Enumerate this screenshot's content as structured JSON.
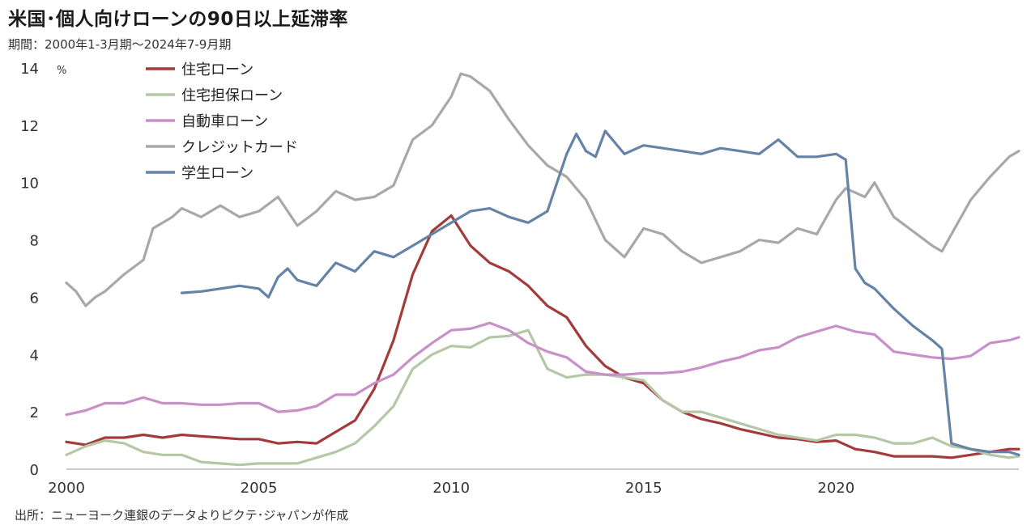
{
  "title": "米国･個人向けローンの90日以上延滞率",
  "subtitle": "期間：2000年1-3月期～2024年7-9月期",
  "source": "出所：ニューヨーク連銀のデータよりピクテ･ジャパンが作成",
  "chart_data": {
    "type": "line",
    "ylabel": "%",
    "ylim": [
      0,
      14
    ],
    "xlim": [
      2000.0,
      2024.75
    ],
    "yticks": [
      0,
      2,
      4,
      6,
      8,
      10,
      12,
      14
    ],
    "xticks": [
      2000,
      2005,
      2010,
      2015,
      2020
    ],
    "grid": false,
    "legend_position": "top-left",
    "series": [
      {
        "name": "住宅ローン",
        "color": "#a33b3b",
        "points": [
          [
            2000,
            0.95
          ],
          [
            2000.5,
            0.85
          ],
          [
            2001,
            1.1
          ],
          [
            2001.5,
            1.1
          ],
          [
            2002,
            1.2
          ],
          [
            2002.5,
            1.1
          ],
          [
            2003,
            1.2
          ],
          [
            2003.5,
            1.15
          ],
          [
            2004,
            1.1
          ],
          [
            2004.5,
            1.05
          ],
          [
            2005,
            1.05
          ],
          [
            2005.5,
            0.9
          ],
          [
            2006,
            0.95
          ],
          [
            2006.5,
            0.9
          ],
          [
            2007,
            1.3
          ],
          [
            2007.5,
            1.7
          ],
          [
            2008,
            2.8
          ],
          [
            2008.5,
            4.5
          ],
          [
            2009,
            6.8
          ],
          [
            2009.5,
            8.3
          ],
          [
            2010,
            8.85
          ],
          [
            2010.5,
            7.8
          ],
          [
            2011,
            7.2
          ],
          [
            2011.5,
            6.9
          ],
          [
            2012,
            6.4
          ],
          [
            2012.5,
            5.7
          ],
          [
            2013,
            5.3
          ],
          [
            2013.5,
            4.3
          ],
          [
            2014,
            3.6
          ],
          [
            2014.5,
            3.2
          ],
          [
            2015,
            3.0
          ],
          [
            2015.5,
            2.4
          ],
          [
            2016,
            2.0
          ],
          [
            2016.5,
            1.75
          ],
          [
            2017,
            1.6
          ],
          [
            2017.5,
            1.4
          ],
          [
            2018,
            1.25
          ],
          [
            2018.5,
            1.1
          ],
          [
            2019,
            1.05
          ],
          [
            2019.5,
            0.95
          ],
          [
            2020,
            1.0
          ],
          [
            2020.5,
            0.7
          ],
          [
            2021,
            0.6
          ],
          [
            2021.5,
            0.45
          ],
          [
            2022,
            0.45
          ],
          [
            2022.5,
            0.45
          ],
          [
            2023,
            0.4
          ],
          [
            2023.5,
            0.5
          ],
          [
            2024,
            0.6
          ],
          [
            2024.5,
            0.7
          ],
          [
            2024.75,
            0.7
          ]
        ]
      },
      {
        "name": "住宅担保ローン",
        "color": "#b4c8a8",
        "points": [
          [
            2000,
            0.5
          ],
          [
            2000.5,
            0.8
          ],
          [
            2001,
            1.0
          ],
          [
            2001.5,
            0.9
          ],
          [
            2002,
            0.6
          ],
          [
            2002.5,
            0.5
          ],
          [
            2003,
            0.5
          ],
          [
            2003.5,
            0.25
          ],
          [
            2004,
            0.2
          ],
          [
            2004.5,
            0.15
          ],
          [
            2005,
            0.2
          ],
          [
            2005.5,
            0.2
          ],
          [
            2006,
            0.2
          ],
          [
            2006.5,
            0.4
          ],
          [
            2007,
            0.6
          ],
          [
            2007.5,
            0.9
          ],
          [
            2008,
            1.5
          ],
          [
            2008.5,
            2.2
          ],
          [
            2009,
            3.5
          ],
          [
            2009.5,
            4.0
          ],
          [
            2010,
            4.3
          ],
          [
            2010.5,
            4.25
          ],
          [
            2011,
            4.6
          ],
          [
            2011.5,
            4.65
          ],
          [
            2012,
            4.85
          ],
          [
            2012.5,
            3.5
          ],
          [
            2013,
            3.2
          ],
          [
            2013.5,
            3.3
          ],
          [
            2014,
            3.3
          ],
          [
            2014.5,
            3.2
          ],
          [
            2015,
            3.1
          ],
          [
            2015.5,
            2.4
          ],
          [
            2016,
            2.0
          ],
          [
            2016.5,
            2.0
          ],
          [
            2017,
            1.8
          ],
          [
            2017.5,
            1.6
          ],
          [
            2018,
            1.4
          ],
          [
            2018.5,
            1.2
          ],
          [
            2019,
            1.1
          ],
          [
            2019.5,
            1.0
          ],
          [
            2020,
            1.2
          ],
          [
            2020.5,
            1.2
          ],
          [
            2021,
            1.1
          ],
          [
            2021.5,
            0.9
          ],
          [
            2022,
            0.9
          ],
          [
            2022.5,
            1.1
          ],
          [
            2023,
            0.8
          ],
          [
            2023.5,
            0.7
          ],
          [
            2024,
            0.5
          ],
          [
            2024.5,
            0.4
          ],
          [
            2024.75,
            0.45
          ]
        ]
      },
      {
        "name": "自動車ローン",
        "color": "#c88fc8",
        "points": [
          [
            2000,
            1.9
          ],
          [
            2000.5,
            2.05
          ],
          [
            2001,
            2.3
          ],
          [
            2001.5,
            2.3
          ],
          [
            2002,
            2.5
          ],
          [
            2002.5,
            2.3
          ],
          [
            2003,
            2.3
          ],
          [
            2003.5,
            2.25
          ],
          [
            2004,
            2.25
          ],
          [
            2004.5,
            2.3
          ],
          [
            2005,
            2.3
          ],
          [
            2005.5,
            2.0
          ],
          [
            2006,
            2.05
          ],
          [
            2006.5,
            2.2
          ],
          [
            2007,
            2.6
          ],
          [
            2007.5,
            2.6
          ],
          [
            2008,
            3.0
          ],
          [
            2008.5,
            3.3
          ],
          [
            2009,
            3.9
          ],
          [
            2009.5,
            4.4
          ],
          [
            2010,
            4.85
          ],
          [
            2010.5,
            4.9
          ],
          [
            2011,
            5.1
          ],
          [
            2011.5,
            4.85
          ],
          [
            2012,
            4.4
          ],
          [
            2012.5,
            4.1
          ],
          [
            2013,
            3.9
          ],
          [
            2013.5,
            3.4
          ],
          [
            2014,
            3.3
          ],
          [
            2014.5,
            3.3
          ],
          [
            2015,
            3.35
          ],
          [
            2015.5,
            3.35
          ],
          [
            2016,
            3.4
          ],
          [
            2016.5,
            3.55
          ],
          [
            2017,
            3.75
          ],
          [
            2017.5,
            3.9
          ],
          [
            2018,
            4.15
          ],
          [
            2018.5,
            4.25
          ],
          [
            2019,
            4.6
          ],
          [
            2019.5,
            4.8
          ],
          [
            2020,
            5.0
          ],
          [
            2020.5,
            4.8
          ],
          [
            2021,
            4.7
          ],
          [
            2021.5,
            4.1
          ],
          [
            2022,
            4.0
          ],
          [
            2022.5,
            3.9
          ],
          [
            2023,
            3.85
          ],
          [
            2023.5,
            3.95
          ],
          [
            2024,
            4.4
          ],
          [
            2024.5,
            4.5
          ],
          [
            2024.75,
            4.6
          ]
        ]
      },
      {
        "name": "クレジットカード",
        "color": "#a8a8a8",
        "points": [
          [
            2000,
            6.5
          ],
          [
            2000.25,
            6.2
          ],
          [
            2000.5,
            5.7
          ],
          [
            2000.75,
            6.0
          ],
          [
            2001,
            6.2
          ],
          [
            2001.5,
            6.8
          ],
          [
            2002,
            7.3
          ],
          [
            2002.25,
            8.4
          ],
          [
            2002.75,
            8.8
          ],
          [
            2003,
            9.1
          ],
          [
            2003.5,
            8.8
          ],
          [
            2004,
            9.2
          ],
          [
            2004.5,
            8.8
          ],
          [
            2005,
            9.0
          ],
          [
            2005.5,
            9.5
          ],
          [
            2006,
            8.5
          ],
          [
            2006.5,
            9.0
          ],
          [
            2007,
            9.7
          ],
          [
            2007.5,
            9.4
          ],
          [
            2008,
            9.5
          ],
          [
            2008.5,
            9.9
          ],
          [
            2009,
            11.5
          ],
          [
            2009.5,
            12.0
          ],
          [
            2010,
            13.0
          ],
          [
            2010.25,
            13.8
          ],
          [
            2010.5,
            13.7
          ],
          [
            2011,
            13.2
          ],
          [
            2011.5,
            12.2
          ],
          [
            2012,
            11.3
          ],
          [
            2012.5,
            10.6
          ],
          [
            2013,
            10.2
          ],
          [
            2013.5,
            9.4
          ],
          [
            2014,
            8.0
          ],
          [
            2014.5,
            7.4
          ],
          [
            2015,
            8.4
          ],
          [
            2015.5,
            8.2
          ],
          [
            2016,
            7.6
          ],
          [
            2016.5,
            7.2
          ],
          [
            2017,
            7.4
          ],
          [
            2017.5,
            7.6
          ],
          [
            2018,
            8.0
          ],
          [
            2018.5,
            7.9
          ],
          [
            2019,
            8.4
          ],
          [
            2019.5,
            8.2
          ],
          [
            2020,
            9.4
          ],
          [
            2020.25,
            9.8
          ],
          [
            2020.75,
            9.5
          ],
          [
            2021,
            10.0
          ],
          [
            2021.5,
            8.8
          ],
          [
            2022,
            8.3
          ],
          [
            2022.5,
            7.8
          ],
          [
            2022.75,
            7.6
          ],
          [
            2023,
            8.2
          ],
          [
            2023.5,
            9.4
          ],
          [
            2024,
            10.2
          ],
          [
            2024.5,
            10.9
          ],
          [
            2024.75,
            11.1
          ]
        ]
      },
      {
        "name": "学生ローン",
        "color": "#6483a6",
        "points": [
          [
            2003,
            6.15
          ],
          [
            2003.5,
            6.2
          ],
          [
            2004,
            6.3
          ],
          [
            2004.5,
            6.4
          ],
          [
            2005,
            6.3
          ],
          [
            2005.25,
            6.0
          ],
          [
            2005.5,
            6.7
          ],
          [
            2005.75,
            7.0
          ],
          [
            2006,
            6.6
          ],
          [
            2006.5,
            6.4
          ],
          [
            2007,
            7.2
          ],
          [
            2007.5,
            6.9
          ],
          [
            2008,
            7.6
          ],
          [
            2008.5,
            7.4
          ],
          [
            2009,
            7.8
          ],
          [
            2009.5,
            8.2
          ],
          [
            2010,
            8.6
          ],
          [
            2010.5,
            9.0
          ],
          [
            2011,
            9.1
          ],
          [
            2011.5,
            8.8
          ],
          [
            2012,
            8.6
          ],
          [
            2012.5,
            9.0
          ],
          [
            2013,
            11.0
          ],
          [
            2013.25,
            11.7
          ],
          [
            2013.5,
            11.1
          ],
          [
            2013.75,
            10.9
          ],
          [
            2014,
            11.8
          ],
          [
            2014.5,
            11.0
          ],
          [
            2015,
            11.3
          ],
          [
            2015.5,
            11.2
          ],
          [
            2016,
            11.1
          ],
          [
            2016.5,
            11.0
          ],
          [
            2017,
            11.2
          ],
          [
            2017.5,
            11.1
          ],
          [
            2018,
            11.0
          ],
          [
            2018.5,
            11.5
          ],
          [
            2019,
            10.9
          ],
          [
            2019.5,
            10.9
          ],
          [
            2020,
            11.0
          ],
          [
            2020.25,
            10.8
          ],
          [
            2020.5,
            7.0
          ],
          [
            2020.75,
            6.5
          ],
          [
            2021,
            6.3
          ],
          [
            2021.5,
            5.6
          ],
          [
            2022,
            5.0
          ],
          [
            2022.5,
            4.5
          ],
          [
            2022.75,
            4.2
          ],
          [
            2023,
            0.9
          ],
          [
            2023.5,
            0.7
          ],
          [
            2024,
            0.6
          ],
          [
            2024.5,
            0.6
          ],
          [
            2024.75,
            0.5
          ]
        ]
      }
    ]
  }
}
